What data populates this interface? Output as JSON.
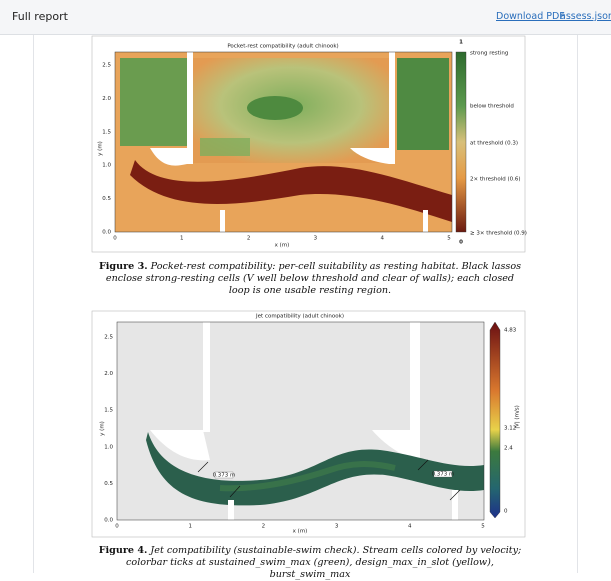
{
  "header": {
    "title": "Full report",
    "links": [
      "Download PDF",
      "assess.json"
    ]
  },
  "figures": [
    {
      "plot_title": "Pocket-rest compatibility (adult chinook)",
      "x_label": "x (m)",
      "y_label": "y (m)",
      "x_ticks": [
        "0",
        "1",
        "2",
        "3",
        "4",
        "5"
      ],
      "y_ticks": [
        "0.0",
        "0.5",
        "1.0",
        "1.5",
        "2.0",
        "2.5"
      ],
      "colorbar_ends": [
        "1",
        "0"
      ],
      "colorbar_labels": [
        "strong resting",
        "below threshold",
        "at threshold (0.3)",
        "2× threshold (0.6)",
        "≥ 3× threshold (0.9)"
      ],
      "caption_label": "Figure 3.",
      "caption_text": "Pocket-rest compatibility: per-cell suitability as resting habitat. Black lassos enclose strong-resting cells (V well below threshold and clear of walls); each closed loop is one usable resting region."
    },
    {
      "plot_title": "Jet compatibility (adult chinook)",
      "x_label": "x (m)",
      "y_label": "y (m)",
      "x_ticks": [
        "0",
        "1",
        "2",
        "3",
        "4",
        "5"
      ],
      "y_ticks": [
        "0.0",
        "0.5",
        "1.0",
        "1.5",
        "2.0",
        "2.5"
      ],
      "colorbar_labels": [
        "4.83",
        "3.12",
        "2.4",
        "0"
      ],
      "colorbar_title": "|V| (m/s)",
      "annotations": [
        "0.373 m",
        "0.373 m"
      ],
      "caption_label": "Figure 4.",
      "caption_text": "Jet compatibility (sustainable-swim check). Stream cells colored by velocity; colorbar ticks at sustained_swim_max (green), design_max_in_slot (yellow), burst_swim_max"
    }
  ]
}
